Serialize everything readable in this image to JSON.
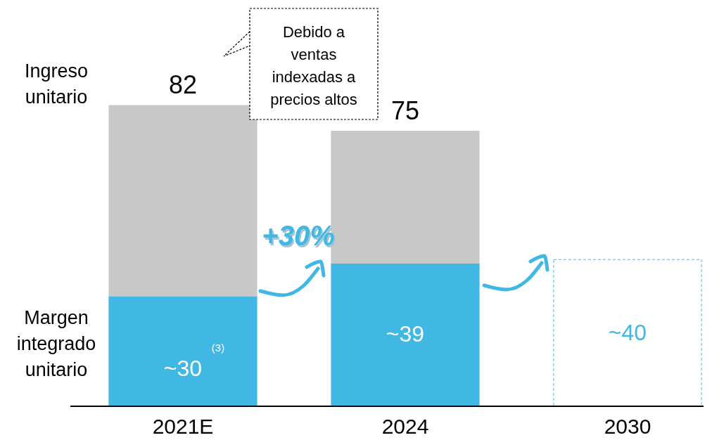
{
  "chart_data": {
    "type": "bar",
    "stacked": true,
    "legend": "left",
    "categories": [
      "2021E",
      "2024",
      "2030"
    ],
    "series": [
      {
        "name": "Margen integrado unitario",
        "color": "#41b8e4",
        "colors": [
          "#41b8e4",
          "#41b8e4",
          "#ffffff"
        ],
        "line_style": [
          null,
          null,
          "dashed"
        ],
        "values": [
          30,
          39,
          40
        ],
        "value_labels": [
          "~30$^{(3)}$",
          "~39",
          "~40"
        ]
      },
      {
        "name": "Ingreso unitario",
        "color": "#c8c8c8",
        "values": [
          52,
          36,
          null
        ]
      }
    ],
    "totals": [
      "82",
      "75",
      null
    ],
    "annotations": [
      "Debido a ventas indexadas a precios altos",
      "+30%"
    ]
  }
}
